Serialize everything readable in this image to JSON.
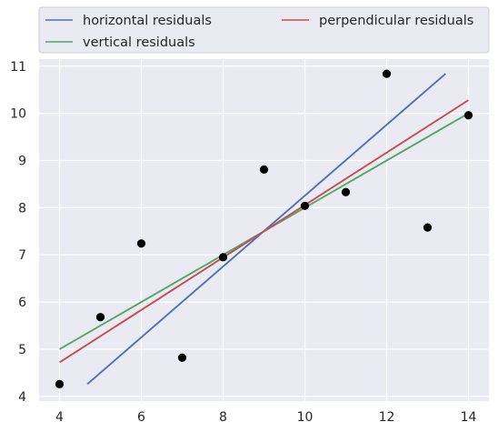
{
  "chart_data": {
    "type": "scatter",
    "title": "",
    "xlabel": "",
    "ylabel": "",
    "xlim": [
      3.5,
      14.5
    ],
    "ylim": [
      3.9,
      11.15
    ],
    "grid": true,
    "legend_position": "top (above plot, two columns)",
    "x_ticks": [
      4,
      6,
      8,
      10,
      12,
      14
    ],
    "y_ticks": [
      4,
      5,
      6,
      7,
      8,
      9,
      10,
      11
    ],
    "points": {
      "x": [
        4,
        5,
        6,
        7,
        8,
        9,
        10,
        11,
        12,
        13,
        14
      ],
      "y": [
        4.26,
        5.68,
        7.24,
        4.82,
        6.95,
        8.81,
        8.04,
        8.33,
        10.84,
        7.58,
        9.96
      ],
      "color": "#000000"
    },
    "series": [
      {
        "name": "horizontal residuals",
        "color": "#4c72b0",
        "x": [
          4.68,
          13.44
        ],
        "y": [
          4.26,
          10.84
        ]
      },
      {
        "name": "vertical residuals",
        "color": "#55a868",
        "x": [
          4,
          14
        ],
        "y": [
          5.0,
          10.0
        ]
      },
      {
        "name": "perpendicular residuals",
        "color": "#c44e52",
        "x": [
          4,
          14
        ],
        "y": [
          4.72,
          10.28
        ]
      }
    ]
  }
}
